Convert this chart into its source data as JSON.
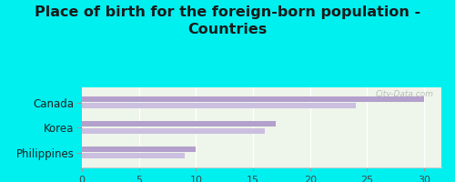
{
  "title": "Place of birth for the foreign-born population -\nCountries",
  "categories": [
    "Canada",
    "Korea",
    "Philippines"
  ],
  "values_dark": [
    30,
    17,
    10
  ],
  "values_light": [
    24,
    16,
    9
  ],
  "bar_color_dark": "#b3a0cc",
  "bar_color_light": "#cbbfe0",
  "background_color": "#00f0f0",
  "plot_bg_color": "#eef5ea",
  "xlim": [
    0,
    31.5
  ],
  "xticks": [
    0,
    5,
    10,
    15,
    20,
    25,
    30
  ],
  "title_fontsize": 11.5,
  "label_fontsize": 8.5,
  "tick_fontsize": 8,
  "watermark": "City-Data.com",
  "bar_height": 0.22,
  "bar_gap": 0.05
}
